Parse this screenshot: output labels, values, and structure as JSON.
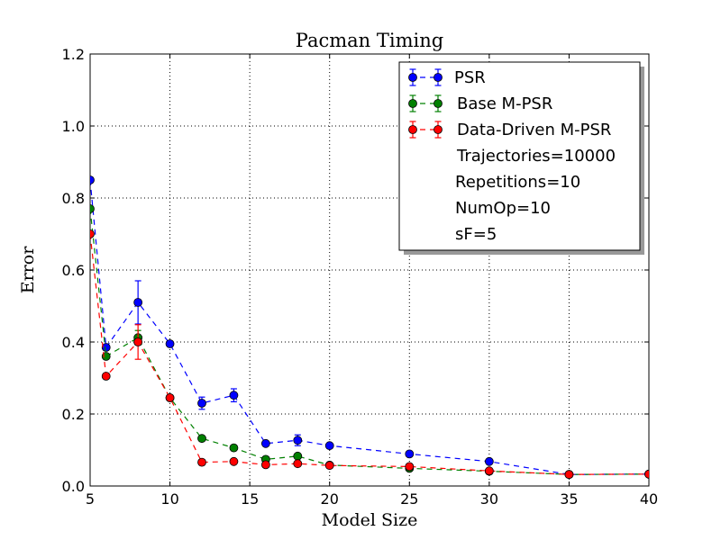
{
  "chart_data": {
    "type": "line",
    "title": "Pacman Timing",
    "xlabel": "Model Size",
    "ylabel": "Error",
    "xlim": [
      5,
      40
    ],
    "ylim": [
      0.0,
      1.2
    ],
    "grid": true,
    "legend_placement": "top-right",
    "x_ticks": [
      5,
      10,
      15,
      20,
      25,
      30,
      35,
      40
    ],
    "y_ticks": [
      0.0,
      0.2,
      0.4,
      0.6,
      0.8,
      1.0,
      1.2
    ],
    "x_tick_labels": [
      "5",
      "10",
      "15",
      "20",
      "25",
      "30",
      "35",
      "40"
    ],
    "y_tick_labels": [
      "0.0",
      "0.2",
      "0.4",
      "0.6",
      "0.8",
      "1.0",
      "1.2"
    ],
    "series": [
      {
        "name": "PSR",
        "color": "#0000ff",
        "x": [
          5,
          6,
          8,
          10,
          12,
          14,
          16,
          18,
          20,
          25,
          30,
          35,
          40
        ],
        "y": [
          0.85,
          0.385,
          0.51,
          0.395,
          0.23,
          0.252,
          0.118,
          0.127,
          0.112,
          0.089,
          0.068,
          0.032,
          0.033
        ],
        "err": [
          0.0,
          0.0,
          0.06,
          0.0,
          0.017,
          0.018,
          0.005,
          0.015,
          0.004,
          0.004,
          0.006,
          0.0,
          0.0
        ]
      },
      {
        "name": "Base M-PSR",
        "color": "#008000",
        "x": [
          5,
          6,
          8,
          10,
          12,
          14,
          16,
          18,
          20,
          25,
          30,
          35,
          40
        ],
        "y": [
          0.77,
          0.36,
          0.412,
          0.245,
          0.132,
          0.106,
          0.074,
          0.083,
          0.058,
          0.049,
          0.041,
          0.032,
          0.033
        ],
        "err": [
          0.0,
          0.0,
          0.02,
          0.0,
          0.004,
          0.006,
          0.003,
          0.004,
          0.002,
          0.002,
          0.002,
          0.0,
          0.0
        ]
      },
      {
        "name": "Data-Driven M-PSR",
        "color": "#ff0000",
        "x": [
          5,
          6,
          8,
          10,
          12,
          14,
          16,
          18,
          20,
          25,
          30,
          35,
          40
        ],
        "y": [
          0.7,
          0.305,
          0.4,
          0.245,
          0.066,
          0.068,
          0.059,
          0.062,
          0.057,
          0.054,
          0.042,
          0.032,
          0.033
        ],
        "err": [
          0.0,
          0.0,
          0.048,
          0.0,
          0.002,
          0.002,
          0.002,
          0.003,
          0.002,
          0.002,
          0.002,
          0.0,
          0.0
        ]
      }
    ],
    "annotations": [
      "Trajectories=10000",
      "Repetitions=10",
      "NumOp=10",
      "sF=5"
    ]
  }
}
